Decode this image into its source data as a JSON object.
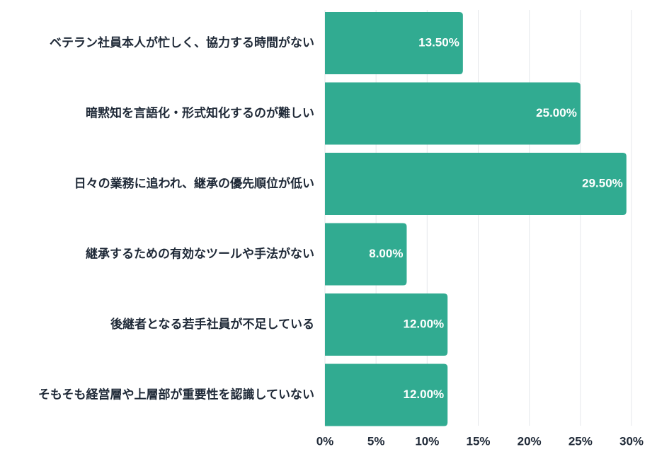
{
  "chart_data": {
    "type": "bar",
    "orientation": "horizontal",
    "categories": [
      "ベテラン社員本人が忙しく、協力する時間がない",
      "暗黙知を言語化・形式知化するのが難しい",
      "日々の業務に追われ、継承の優先順位が低い",
      "継承するための有効なツールや手法がない",
      "後継者となる若手社員が不足している",
      "そもそも経営層や上層部が重要性を認識していない"
    ],
    "values": [
      13.5,
      25.0,
      29.5,
      8.0,
      12.0,
      12.0
    ],
    "data_labels": [
      "13.50%",
      "25.00%",
      "29.50%",
      "8.00%",
      "12.00%",
      "12.00%"
    ],
    "x_ticks": [
      "0%",
      "5%",
      "10%",
      "15%",
      "20%",
      "25%",
      "30%"
    ],
    "xlim": [
      0,
      30
    ],
    "title": "",
    "xlabel": "",
    "ylabel": "",
    "grid": true,
    "legend": false,
    "bar_color": "#31ab91"
  }
}
